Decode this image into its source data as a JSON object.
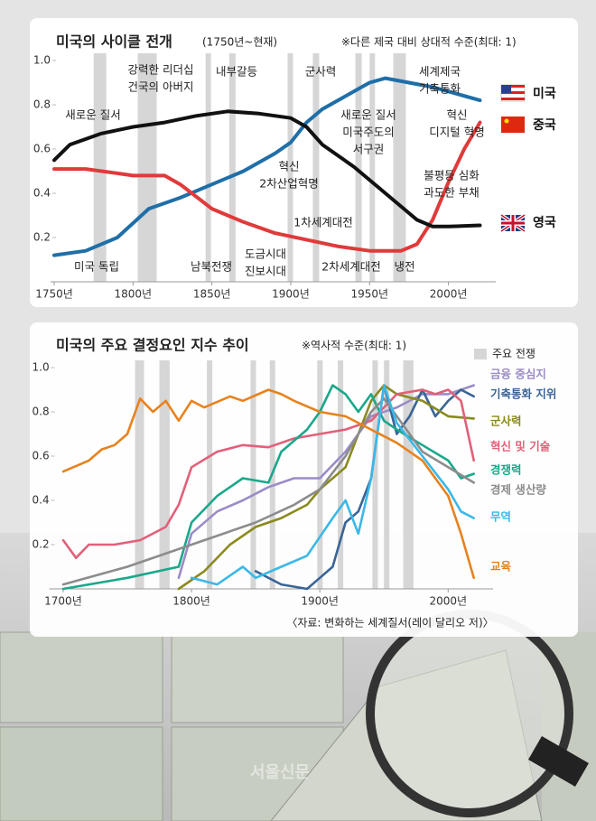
{
  "chart_data": [
    {
      "type": "line",
      "title": "미국의 사이클 전개",
      "subtitle": "(1750년~현재)",
      "note": "※다른 제국 대비 상대적 수준(최대: 1)",
      "xlim": [
        1750,
        2030
      ],
      "xticks": [
        {
          "value": 1750,
          "label": "1750년"
        },
        {
          "value": 1800,
          "label": "1800년"
        },
        {
          "value": 1850,
          "label": "1850년"
        },
        {
          "value": 1900,
          "label": "1900년"
        },
        {
          "value": 1950,
          "label": "1950년"
        },
        {
          "value": 2000,
          "label": "2000년"
        }
      ],
      "ylim": [
        0,
        1
      ],
      "yticks": [
        0.2,
        0.4,
        0.6,
        0.8,
        {
          "value": 1,
          "label": "1.0"
        }
      ],
      "war_periods": [
        [
          1775,
          1783
        ],
        [
          1803,
          1815
        ],
        [
          1846,
          1848
        ],
        [
          1861,
          1865
        ],
        [
          1898,
          1899
        ],
        [
          1914,
          1918
        ],
        [
          1941,
          1945
        ],
        [
          1950,
          1953
        ],
        [
          1965,
          1973
        ]
      ],
      "war_color": "#d6d6d6",
      "series": [
        {
          "name": "미국",
          "color": "#1f6fa8",
          "x": [
            1750,
            1770,
            1790,
            1810,
            1830,
            1850,
            1870,
            1890,
            1900,
            1910,
            1920,
            1940,
            1950,
            1960,
            1975,
            1990,
            2000,
            2020
          ],
          "values": [
            0.12,
            0.14,
            0.2,
            0.33,
            0.38,
            0.44,
            0.5,
            0.58,
            0.63,
            0.72,
            0.78,
            0.86,
            0.9,
            0.92,
            0.9,
            0.88,
            0.86,
            0.82
          ]
        },
        {
          "name": "중국",
          "color": "#e03a3a",
          "x": [
            1750,
            1770,
            1790,
            1800,
            1820,
            1830,
            1850,
            1870,
            1890,
            1910,
            1930,
            1950,
            1970,
            1980,
            1990,
            2000,
            2010,
            2020
          ],
          "values": [
            0.51,
            0.51,
            0.49,
            0.48,
            0.48,
            0.44,
            0.33,
            0.27,
            0.22,
            0.19,
            0.16,
            0.14,
            0.14,
            0.17,
            0.28,
            0.45,
            0.6,
            0.72
          ]
        },
        {
          "name": "영국",
          "color": "#111111",
          "x": [
            1750,
            1760,
            1780,
            1800,
            1820,
            1840,
            1860,
            1880,
            1900,
            1910,
            1920,
            1940,
            1960,
            1980,
            1990,
            2000,
            2020
          ],
          "values": [
            0.55,
            0.62,
            0.67,
            0.7,
            0.72,
            0.75,
            0.77,
            0.76,
            0.74,
            0.7,
            0.62,
            0.52,
            0.4,
            0.28,
            0.25,
            0.25,
            0.255
          ]
        }
      ],
      "annotations": [
        {
          "lines": [
            "강력한 리더십",
            "건국의 아버지"
          ]
        },
        {
          "lines": [
            "내부갈등"
          ]
        },
        {
          "lines": [
            "군사력"
          ]
        },
        {
          "lines": [
            "세계제국",
            "기축통화"
          ]
        },
        {
          "lines": [
            "새로운 질서"
          ]
        },
        {
          "lines": [
            "새로운 질서",
            "미국주도의",
            "서구권"
          ]
        },
        {
          "lines": [
            "혁신",
            "디지털 혁명"
          ]
        },
        {
          "lines": [
            "혁신",
            "2차산업혁명"
          ]
        },
        {
          "lines": [
            "불평등 심화",
            "과도한 부채"
          ]
        },
        {
          "lines": [
            "1차세계대전"
          ]
        },
        {
          "lines": [
            "도금시대",
            "진보시대"
          ]
        },
        {
          "lines": [
            "미국 독립"
          ]
        },
        {
          "lines": [
            "남북전쟁"
          ]
        },
        {
          "lines": [
            "2차세계대전"
          ]
        },
        {
          "lines": [
            "냉전"
          ]
        }
      ]
    },
    {
      "type": "line",
      "title": "미국의 주요 결정요인 지수 추이",
      "note": "※역사적 수준(최대: 1)",
      "war_label": "주요 전쟁",
      "war_color": "#d6d6d6",
      "source": "〈자료: 변화하는 세계질서(레이 달리오 저)〉",
      "xlim": [
        1692,
        2035
      ],
      "xticks": [
        {
          "value": 1700,
          "label": "1700년"
        },
        {
          "value": 1800,
          "label": "1800년"
        },
        {
          "value": 1900,
          "label": "1900년"
        },
        {
          "value": 2000,
          "label": "2000년"
        }
      ],
      "ylim": [
        0,
        1
      ],
      "yticks": [
        0.2,
        0.4,
        0.6,
        0.8,
        {
          "value": 1,
          "label": "1.0"
        }
      ],
      "war_periods": [
        [
          1756,
          1763
        ],
        [
          1775,
          1783
        ],
        [
          1812,
          1815
        ],
        [
          1846,
          1848
        ],
        [
          1861,
          1865
        ],
        [
          1898,
          1899
        ],
        [
          1914,
          1918
        ],
        [
          1941,
          1945
        ],
        [
          1950,
          1953
        ],
        [
          1965,
          1973
        ]
      ],
      "series": [
        {
          "name": "금융 중심지",
          "color": "#9b8bc8",
          "x": [
            1790,
            1800,
            1820,
            1840,
            1860,
            1880,
            1900,
            1920,
            1940,
            1950,
            1960,
            1980,
            2000,
            2020
          ],
          "values": [
            0.05,
            0.25,
            0.35,
            0.4,
            0.46,
            0.5,
            0.5,
            0.62,
            0.78,
            0.8,
            0.82,
            0.88,
            0.88,
            0.92
          ]
        },
        {
          "name": "기축통화 지위",
          "color": "#3a6496",
          "x": [
            1850,
            1870,
            1890,
            1900,
            1910,
            1920,
            1930,
            1940,
            1950,
            1960,
            1970,
            1980,
            1990,
            2000,
            2010,
            2020
          ],
          "values": [
            0.08,
            0.02,
            0,
            0.05,
            0.1,
            0.3,
            0.35,
            0.5,
            0.92,
            0.7,
            0.78,
            0.9,
            0.78,
            0.85,
            0.9,
            0.87
          ]
        },
        {
          "name": "군사력",
          "color": "#8a8a1e",
          "x": [
            1790,
            1810,
            1830,
            1850,
            1870,
            1890,
            1900,
            1920,
            1940,
            1950,
            1960,
            1980,
            2000,
            2020
          ],
          "values": [
            0,
            0.08,
            0.2,
            0.28,
            0.32,
            0.38,
            0.45,
            0.55,
            0.85,
            0.92,
            0.88,
            0.85,
            0.78,
            0.77
          ]
        },
        {
          "name": "혁신 및 기술",
          "color": "#e2607a",
          "x": [
            1700,
            1710,
            1720,
            1740,
            1760,
            1780,
            1790,
            1800,
            1820,
            1840,
            1860,
            1880,
            1900,
            1920,
            1940,
            1960,
            1980,
            1990,
            2000,
            2010,
            2020
          ],
          "values": [
            0.22,
            0.14,
            0.2,
            0.2,
            0.22,
            0.28,
            0.38,
            0.55,
            0.62,
            0.65,
            0.64,
            0.68,
            0.7,
            0.72,
            0.76,
            0.88,
            0.9,
            0.88,
            0.9,
            0.85,
            0.58
          ]
        },
        {
          "name": "경쟁력",
          "color": "#1aa88a",
          "x": [
            1700,
            1750,
            1790,
            1800,
            1820,
            1840,
            1860,
            1870,
            1890,
            1900,
            1910,
            1920,
            1930,
            1940,
            1950,
            1960,
            1980,
            2000,
            2010,
            2020
          ],
          "values": [
            0,
            0.05,
            0.1,
            0.3,
            0.42,
            0.5,
            0.48,
            0.62,
            0.72,
            0.8,
            0.92,
            0.88,
            0.8,
            0.88,
            0.76,
            0.72,
            0.65,
            0.58,
            0.5,
            0.52
          ]
        },
        {
          "name": "경제 생산량",
          "color": "#8c8c8c",
          "x": [
            1700,
            1750,
            1800,
            1850,
            1880,
            1900,
            1920,
            1940,
            1950,
            1960,
            1980,
            2000,
            2020
          ],
          "values": [
            0.02,
            0.1,
            0.2,
            0.3,
            0.38,
            0.45,
            0.6,
            0.8,
            0.86,
            0.78,
            0.62,
            0.55,
            0.48
          ]
        },
        {
          "name": "무역",
          "color": "#3bb8e8",
          "x": [
            1800,
            1820,
            1840,
            1850,
            1870,
            1890,
            1910,
            1920,
            1930,
            1940,
            1950,
            1960,
            1980,
            2000,
            2010,
            2020
          ],
          "values": [
            0.05,
            0.02,
            0.1,
            0.05,
            0.1,
            0.15,
            0.32,
            0.4,
            0.25,
            0.5,
            0.92,
            0.75,
            0.6,
            0.45,
            0.35,
            0.32
          ]
        },
        {
          "name": "교육",
          "color": "#e8821e",
          "x": [
            1700,
            1720,
            1730,
            1740,
            1750,
            1760,
            1770,
            1780,
            1790,
            1800,
            1810,
            1830,
            1840,
            1860,
            1870,
            1880,
            1900,
            1920,
            1940,
            1960,
            1980,
            2000,
            2010,
            2020
          ],
          "values": [
            0.53,
            0.58,
            0.63,
            0.65,
            0.7,
            0.86,
            0.8,
            0.85,
            0.76,
            0.85,
            0.82,
            0.87,
            0.85,
            0.9,
            0.88,
            0.85,
            0.8,
            0.78,
            0.72,
            0.66,
            0.58,
            0.42,
            0.25,
            0.05
          ]
        }
      ]
    }
  ],
  "watermark": "서울신문"
}
